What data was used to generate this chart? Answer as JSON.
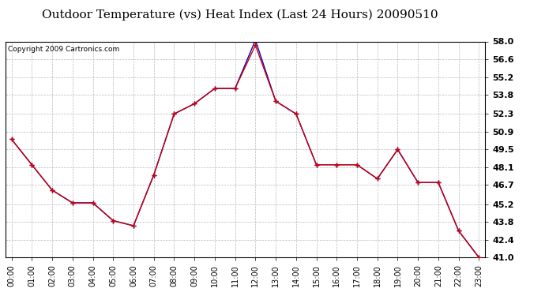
{
  "title": "Outdoor Temperature (vs) Heat Index (Last 24 Hours) 20090510",
  "copyright": "Copyright 2009 Cartronics.com",
  "hours": [
    "00:00",
    "01:00",
    "02:00",
    "03:00",
    "04:00",
    "05:00",
    "06:00",
    "07:00",
    "08:00",
    "09:00",
    "10:00",
    "11:00",
    "12:00",
    "13:00",
    "14:00",
    "15:00",
    "16:00",
    "17:00",
    "18:00",
    "19:00",
    "20:00",
    "21:00",
    "22:00",
    "23:00"
  ],
  "temp": [
    50.3,
    48.3,
    46.3,
    45.3,
    45.3,
    43.9,
    43.5,
    47.5,
    52.3,
    53.1,
    54.3,
    54.3,
    57.7,
    53.3,
    52.3,
    48.3,
    48.3,
    48.3,
    47.2,
    49.5,
    46.9,
    46.9,
    43.1,
    41.0
  ],
  "heat_index": [
    50.3,
    48.3,
    46.3,
    45.3,
    45.3,
    43.9,
    43.5,
    47.5,
    52.3,
    53.1,
    54.3,
    54.3,
    58.1,
    53.3,
    52.3,
    48.3,
    48.3,
    48.3,
    47.2,
    49.5,
    46.9,
    46.9,
    43.1,
    41.0
  ],
  "ylim": [
    41.0,
    58.0
  ],
  "yticks": [
    41.0,
    42.4,
    43.8,
    45.2,
    46.7,
    48.1,
    49.5,
    50.9,
    52.3,
    53.8,
    55.2,
    56.6,
    58.0
  ],
  "temp_color": "#cc0000",
  "heat_index_color": "#0000cc",
  "background_color": "#ffffff",
  "grid_color": "#bbbbbb",
  "title_fontsize": 11,
  "copyright_fontsize": 6.5,
  "marker": "+",
  "markersize": 4,
  "linewidth": 1.0
}
